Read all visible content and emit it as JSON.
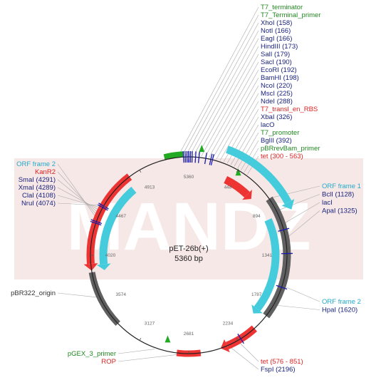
{
  "plasmid": {
    "name": "pET-26b(+)",
    "size_label": "5360 bp"
  },
  "watermark": "MANDZ",
  "colors": {
    "feature_green": "#22aa22",
    "feature_red": "#ee3333",
    "feature_cyan": "#44ccdd",
    "feature_gray": "#606060",
    "site_blue": "#1a1aaa",
    "text_green": "#228822",
    "text_red": "#dd2222",
    "text_cyan": "#22aacc",
    "text_navy": "#1a237e"
  },
  "ticks": [
    "448",
    "894",
    "1341",
    "1787",
    "2234",
    "2681",
    "3127",
    "3574",
    "4020",
    "4467",
    "4913",
    "5360"
  ],
  "labels": {
    "top": [
      {
        "text": "T7_terminator",
        "color": "green"
      },
      {
        "text": "T7_Terminal_primer",
        "color": "green"
      },
      {
        "text": "XhoI (158)",
        "color": "navy"
      },
      {
        "text": "NotI (166)",
        "color": "navy"
      },
      {
        "text": "EagI (166)",
        "color": "navy"
      },
      {
        "text": "HindIII (173)",
        "color": "navy"
      },
      {
        "text": "SalI (179)",
        "color": "navy"
      },
      {
        "text": "SacI (190)",
        "color": "navy"
      },
      {
        "text": "EcoRI (192)",
        "color": "navy"
      },
      {
        "text": "BamHI (198)",
        "color": "navy"
      },
      {
        "text": "NcoI (220)",
        "color": "navy"
      },
      {
        "text": "MscI (225)",
        "color": "navy"
      },
      {
        "text": "NdeI (288)",
        "color": "navy"
      },
      {
        "text": "T7_transl_en_RBS",
        "color": "red"
      },
      {
        "text": "XbaI (326)",
        "color": "navy"
      },
      {
        "text": "lacO",
        "color": "navy"
      },
      {
        "text": "T7_promoter",
        "color": "green"
      },
      {
        "text": "BglII (392)",
        "color": "navy"
      },
      {
        "text": "pBRrevBam_primer",
        "color": "green"
      },
      {
        "text": "tet (300 - 563)",
        "color": "red"
      }
    ],
    "right_upper": [
      {
        "text": "ORF frame 1",
        "color": "cyan"
      },
      {
        "text": "BclI (1128)",
        "color": "navy"
      },
      {
        "text": "lacI",
        "color": "navy"
      },
      {
        "text": "ApaI (1325)",
        "color": "navy"
      }
    ],
    "right_lower": [
      {
        "text": "ORF frame 2",
        "color": "cyan"
      },
      {
        "text": "HpaI (1620)",
        "color": "navy"
      }
    ],
    "bottom_right": [
      {
        "text": "tet (576 - 851)",
        "color": "red"
      },
      {
        "text": "FspI (2196)",
        "color": "navy"
      }
    ],
    "left_upper": [
      {
        "text": "ORF frame 2",
        "color": "cyan"
      },
      {
        "text": "KanR2",
        "color": "red"
      },
      {
        "text": "SmaI (4291)",
        "color": "navy"
      },
      {
        "text": "XmaI (4289)",
        "color": "navy"
      },
      {
        "text": "ClaI (4108)",
        "color": "navy"
      },
      {
        "text": "NruI (4074)",
        "color": "navy"
      }
    ],
    "left_middle": [
      {
        "text": "pBR322_origin",
        "color": "black"
      }
    ],
    "bottom_left": [
      {
        "text": "pGEX_3_primer",
        "color": "green"
      },
      {
        "text": "ROP",
        "color": "red"
      }
    ]
  }
}
